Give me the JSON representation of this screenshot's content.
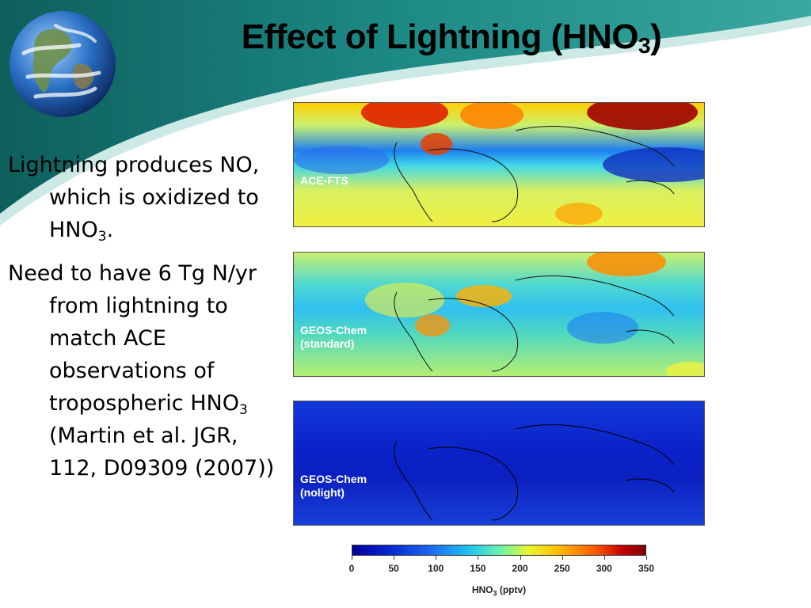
{
  "slide": {
    "title_main": "Effect of Lightning (HNO",
    "title_sub": "3",
    "title_end": ")"
  },
  "bullets": [
    {
      "pre": "Lightning produces NO, which is oxidized to HNO",
      "sub": "3",
      "post": "."
    },
    {
      "pre": "Need to have 6 Tg N/yr from lightning to match ACE observations of tropospheric HNO",
      "sub": "3",
      "post": " (Martin et al. JGR, 112, D09309 (2007))"
    }
  ],
  "maps": [
    {
      "label": "ACE-FTS"
    },
    {
      "label": "GEOS-Chem\n(standard)"
    },
    {
      "label": "GEOS-Chem\n(nolight)"
    }
  ],
  "colorbar": {
    "ticks": [
      "0",
      "50",
      "100",
      "150",
      "200",
      "250",
      "300",
      "350"
    ],
    "label_main": "HNO",
    "label_sub": "3",
    "label_end": " (pptv)"
  },
  "chart_data": {
    "type": "heatmap",
    "panels": [
      "ACE-FTS",
      "GEOS-Chem (standard)",
      "GEOS-Chem (nolight)"
    ],
    "colorbar_range": [
      0,
      350
    ],
    "colorbar_ticks": [
      0,
      50,
      100,
      150,
      200,
      250,
      300,
      350
    ],
    "colorbar_label": "HNO3 (pptv)"
  },
  "colors": {
    "teal_swoosh": "#1d8a86",
    "dark_teal": "#0e5f5c"
  }
}
